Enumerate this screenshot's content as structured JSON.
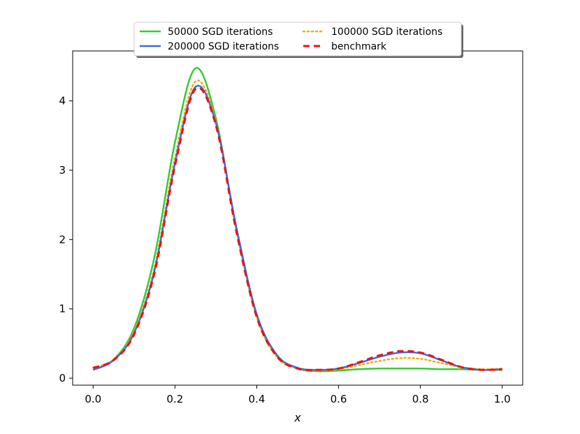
{
  "chart_data": {
    "type": "line",
    "title": "",
    "xlabel": "x",
    "ylabel": "",
    "xlim": [
      -0.05,
      1.05
    ],
    "ylim": [
      -0.1,
      4.72
    ],
    "xticks": [
      "0.0",
      "0.2",
      "0.4",
      "0.6",
      "0.8",
      "1.0"
    ],
    "xtick_values": [
      0.0,
      0.2,
      0.4,
      0.6,
      0.8,
      1.0
    ],
    "yticks": [
      "0",
      "1",
      "2",
      "3",
      "4"
    ],
    "ytick_values": [
      0,
      1,
      2,
      3,
      4
    ],
    "grid": false,
    "legend_position": "top-center",
    "legend_columns": 2,
    "x": [
      0.0,
      0.05,
      0.1,
      0.15,
      0.2,
      0.25,
      0.3,
      0.35,
      0.4,
      0.45,
      0.5,
      0.55,
      0.6,
      0.65,
      0.7,
      0.75,
      0.8,
      0.85,
      0.9,
      0.95,
      1.0
    ],
    "series": [
      {
        "name": "50000 SGD iterations",
        "color": "#33cc33",
        "style": "solid",
        "values": [
          0.12,
          0.27,
          0.72,
          1.75,
          3.4,
          4.47,
          3.75,
          2.15,
          0.9,
          0.32,
          0.14,
          0.1,
          0.11,
          0.13,
          0.14,
          0.14,
          0.14,
          0.13,
          0.13,
          0.12,
          0.12
        ]
      },
      {
        "name": "100000 SGD iterations",
        "color": "#ffa500",
        "style": "dotted",
        "values": [
          0.15,
          0.27,
          0.68,
          1.6,
          3.18,
          4.28,
          3.7,
          2.15,
          0.88,
          0.3,
          0.14,
          0.11,
          0.13,
          0.19,
          0.25,
          0.29,
          0.28,
          0.22,
          0.16,
          0.13,
          0.14
        ]
      },
      {
        "name": "200000 SGD iterations",
        "color": "#4169e1",
        "style": "solid",
        "values": [
          0.12,
          0.26,
          0.65,
          1.55,
          3.1,
          4.2,
          3.68,
          2.18,
          0.92,
          0.33,
          0.15,
          0.12,
          0.14,
          0.22,
          0.31,
          0.37,
          0.36,
          0.26,
          0.16,
          0.12,
          0.13
        ]
      },
      {
        "name": "benchmark",
        "color": "#ee1111",
        "style": "dashed",
        "values": [
          0.15,
          0.26,
          0.63,
          1.52,
          3.06,
          4.17,
          3.65,
          2.12,
          0.88,
          0.31,
          0.14,
          0.12,
          0.14,
          0.23,
          0.33,
          0.39,
          0.37,
          0.27,
          0.16,
          0.12,
          0.13
        ]
      }
    ]
  }
}
